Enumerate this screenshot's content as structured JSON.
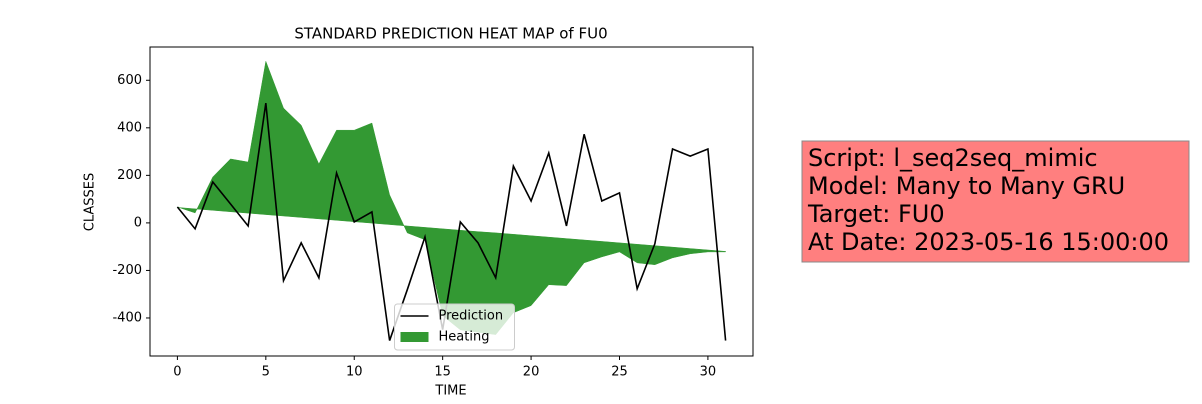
{
  "chart_data": {
    "type": "line",
    "title": "STANDARD PREDICTION HEAT MAP of FU0",
    "x_label": "TIME",
    "y_label": "CLASSES",
    "x": [
      0,
      1,
      2,
      3,
      4,
      5,
      6,
      7,
      8,
      9,
      10,
      11,
      12,
      13,
      14,
      15,
      16,
      17,
      18,
      19,
      20,
      21,
      22,
      23,
      24,
      25,
      26,
      27,
      28,
      29,
      30,
      31
    ],
    "xlim": [
      -1.55,
      32.55
    ],
    "ylim": [
      -560,
      740
    ],
    "xticks": [
      0,
      5,
      10,
      15,
      20,
      25,
      30
    ],
    "yticks": [
      -400,
      -200,
      0,
      200,
      400,
      600
    ],
    "legend": "lower center",
    "series": [
      {
        "name": "Prediction",
        "color": "#000000",
        "kind": "line",
        "values": [
          67,
          -25,
          172,
          80,
          -13,
          504,
          -243,
          -84,
          -231,
          210,
          4,
          46,
          -495,
          -281,
          -59,
          -449,
          4,
          -84,
          -231,
          239,
          92,
          294,
          -13,
          373,
          92,
          126,
          -277,
          -88,
          311,
          281,
          311,
          -495
        ]
      },
      {
        "name": "Heating",
        "color": "#339933",
        "kind": "area",
        "values": [
          67,
          42,
          193,
          269,
          256,
          680,
          483,
          411,
          248,
          390,
          390,
          420,
          118,
          -42,
          -71,
          -390,
          -450,
          -460,
          -470,
          -378,
          -348,
          -260,
          -264,
          -168,
          -143,
          -122,
          -168,
          -176,
          -147,
          -130,
          -122,
          -122
        ],
        "baseline": [
          65,
          59,
          53,
          47,
          41,
          35,
          29,
          23,
          17,
          11,
          5,
          -1,
          -7,
          -13,
          -19,
          -25,
          -31,
          -37,
          -42,
          -48,
          -54,
          -60,
          -66,
          -72,
          -78,
          -84,
          -90,
          -96,
          -102,
          -108,
          -114,
          -120
        ]
      }
    ],
    "annotation": [
      "Script: l_seq2seq_mimic",
      "Model: Many to Many GRU",
      "Target: FU0",
      "At Date: 2023-05-16 15:00:00"
    ]
  }
}
